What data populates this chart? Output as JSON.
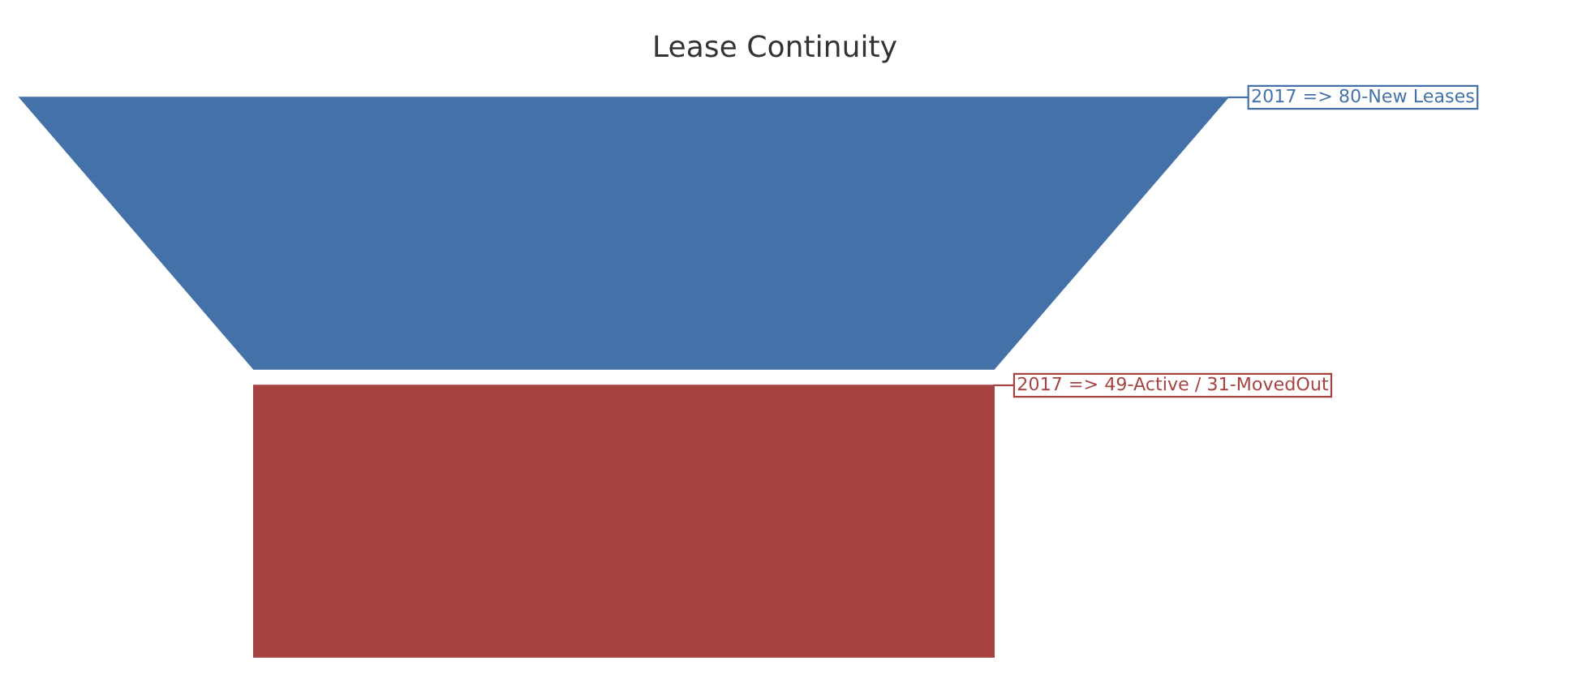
{
  "chart_data": {
    "type": "other",
    "title": "Lease Continuity",
    "categories": [
      null,
      null
    ],
    "values": [
      80,
      49
    ],
    "value_labels": [
      "2017 => 80-New Leases",
      "2017 => 49-Active / 31-MovedOut"
    ],
    "colors": [
      "#4472a8",
      "#a54340"
    ]
  }
}
